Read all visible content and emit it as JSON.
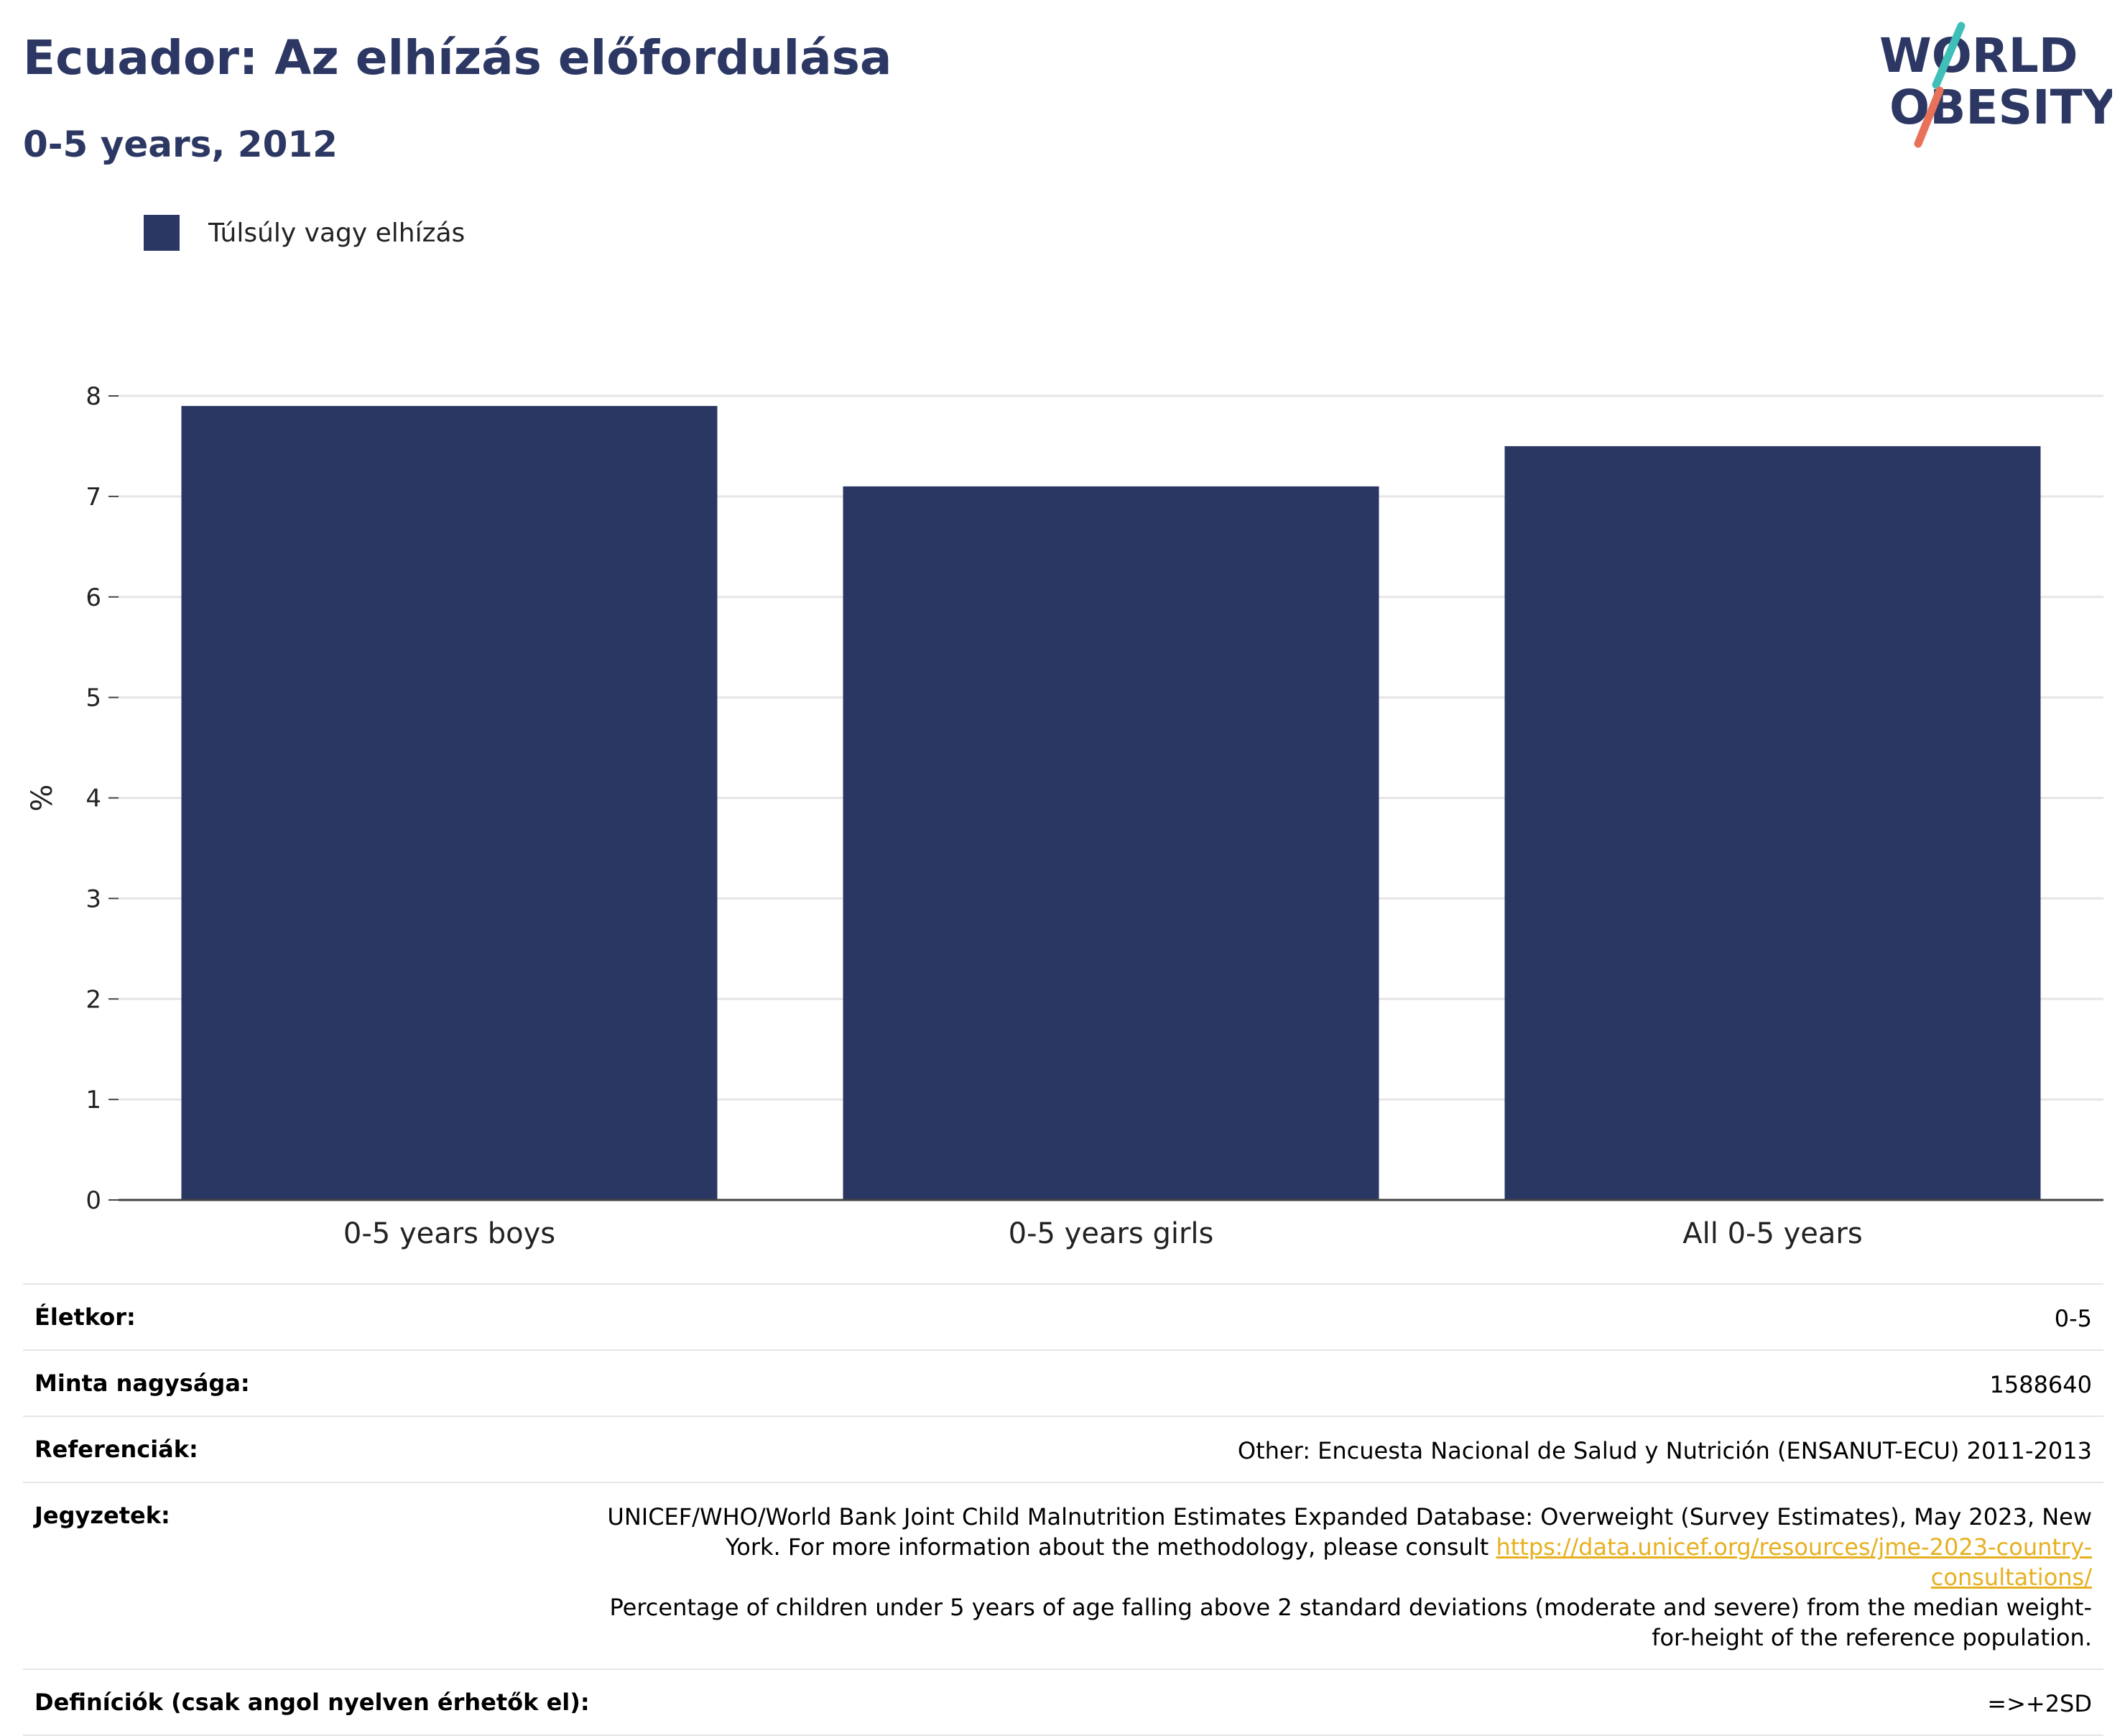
{
  "header": {
    "title": "Ecuador: Az elhízás előfordulása",
    "subtitle": "0-5 years, 2012"
  },
  "logo": {
    "line1": "WORLD",
    "line2": "OBESITY",
    "colors": {
      "text": "#2c3863",
      "slash_top": "#3fbfb8",
      "slash_bottom": "#e8715a"
    }
  },
  "legend": {
    "items": [
      {
        "label": "Túlsúly vagy elhízás",
        "color": "#2b3763"
      }
    ]
  },
  "chart_data": {
    "type": "bar",
    "title": "Ecuador: Az elhízás előfordulása",
    "subtitle": "0-5 years, 2012",
    "categories": [
      "0-5 years boys",
      "0-5 years girls",
      "All 0-5 years"
    ],
    "series": [
      {
        "name": "Túlsúly vagy elhízás",
        "values": [
          7.9,
          7.1,
          7.5
        ],
        "color": "#2b3763"
      }
    ],
    "xlabel": "",
    "ylabel": "%",
    "ylim": [
      0,
      8
    ],
    "yticks": [
      0,
      1,
      2,
      3,
      4,
      5,
      6,
      7,
      8
    ],
    "grid": true,
    "legend_position": "top-left"
  },
  "meta": {
    "age_label": "Életkor:",
    "age_value": "0-5",
    "sample_label": "Minta nagysága:",
    "sample_value": "1588640",
    "refs_label": "Referenciák:",
    "refs_value": "Other: Encuesta Nacional de Salud y Nutrición (ENSANUT-ECU) 2011-2013",
    "notes_label": "Jegyzetek:",
    "notes_text_1": "UNICEF/WHO/World Bank Joint Child Malnutrition Estimates Expanded Database: Overweight (Survey Estimates), May 2023, New York. For more information about the methodology, please consult ",
    "notes_link": "https://data.unicef.org/resources/jme-2023-country-consultations/",
    "notes_text_2": "Percentage of children under 5 years of age falling above 2 standard deviations (moderate and severe) from the median weight-for-height of the reference population.",
    "defs_label": "Definíciók (csak angol nyelven érhetők el):",
    "defs_value": "=>+2SD"
  }
}
